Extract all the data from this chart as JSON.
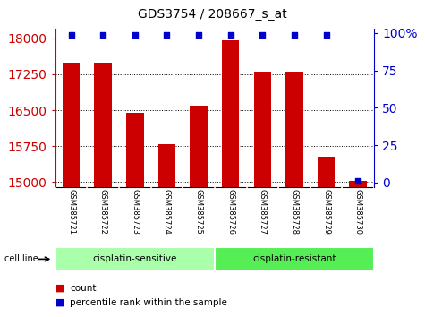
{
  "title": "GDS3754 / 208667_s_at",
  "samples": [
    "GSM385721",
    "GSM385722",
    "GSM385723",
    "GSM385724",
    "GSM385725",
    "GSM385726",
    "GSM385727",
    "GSM385728",
    "GSM385729",
    "GSM385730"
  ],
  "counts": [
    17490,
    17490,
    16450,
    15800,
    16600,
    17960,
    17310,
    17300,
    15540,
    15020
  ],
  "percentile_ranks": [
    99,
    99,
    99,
    99,
    99,
    99,
    99,
    99,
    99,
    1
  ],
  "bar_color": "#cc0000",
  "dot_color": "#0000cc",
  "ylim_left": [
    14900,
    18200
  ],
  "ylim_right": [
    -3,
    103
  ],
  "yticks_left": [
    15000,
    15750,
    16500,
    17250,
    18000
  ],
  "yticks_right": [
    0,
    25,
    50,
    75,
    100
  ],
  "group1_label": "cisplatin-sensitive",
  "group2_label": "cisplatin-resistant",
  "group1_samples": 5,
  "group2_samples": 5,
  "group1_color": "#aaffaa",
  "group2_color": "#55ee55",
  "cell_line_label": "cell line",
  "legend_count": "count",
  "legend_pct": "percentile rank within the sample",
  "background_plot": "#ffffff",
  "tick_area_color": "#c8c8c8"
}
